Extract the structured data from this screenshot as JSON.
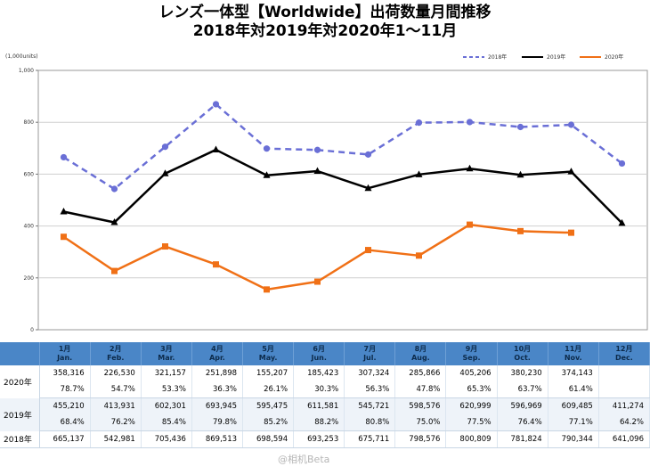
{
  "title_line1": "レンズ一体型【Worldwide】出荷数量月間推移",
  "title_line2": "2018年対2019年対2020年1～11月",
  "unit_label": "(1,000units)",
  "watermark": "@相机Beta",
  "chart_data": {
    "type": "line",
    "title": "レンズ一体型【Worldwide】出荷数量月間推移",
    "subtitle": "2018年対2019年対2020年1～11月",
    "ylabel": "(1,000units)",
    "xlabel": "",
    "ylim": [
      0,
      1000
    ],
    "yticks": [
      "0",
      "200",
      "400",
      "600",
      "800",
      "1,000"
    ],
    "grid": true,
    "legend_position": "top-right",
    "categories": [
      "1月",
      "2月",
      "3月",
      "4月",
      "5月",
      "6月",
      "7月",
      "8月",
      "9月",
      "10月",
      "11月",
      "12月"
    ],
    "series": [
      {
        "name": "2018年",
        "color": "#6a6fd6",
        "style": "dashed",
        "values": [
          665.137,
          542.981,
          705.436,
          869.513,
          698.594,
          693.253,
          675.711,
          798.576,
          800.809,
          781.824,
          790.344,
          641.096
        ]
      },
      {
        "name": "2019年",
        "color": "#000000",
        "style": "solid",
        "values": [
          455.21,
          413.931,
          602.301,
          693.945,
          595.475,
          611.581,
          545.721,
          598.576,
          620.999,
          596.969,
          609.485,
          411.274
        ]
      },
      {
        "name": "2020年",
        "color": "#f07016",
        "style": "solid",
        "values": [
          358.316,
          226.53,
          321.157,
          251.898,
          155.207,
          185.423,
          307.324,
          285.866,
          405.206,
          380.23,
          374.143,
          null
        ]
      }
    ]
  },
  "table": {
    "headers": [
      {
        "ja": "1月",
        "en": "Jan."
      },
      {
        "ja": "2月",
        "en": "Feb."
      },
      {
        "ja": "3月",
        "en": "Mar."
      },
      {
        "ja": "4月",
        "en": "Apr."
      },
      {
        "ja": "5月",
        "en": "May."
      },
      {
        "ja": "6月",
        "en": "Jun."
      },
      {
        "ja": "7月",
        "en": "Jul."
      },
      {
        "ja": "8月",
        "en": "Aug."
      },
      {
        "ja": "9月",
        "en": "Sep."
      },
      {
        "ja": "10月",
        "en": "Oct."
      },
      {
        "ja": "11月",
        "en": "Nov."
      },
      {
        "ja": "12月",
        "en": "Dec."
      }
    ],
    "rows": [
      {
        "year": "2020年",
        "values": [
          "358,316",
          "226,530",
          "321,157",
          "251,898",
          "155,207",
          "185,423",
          "307,324",
          "285,866",
          "405,206",
          "380,230",
          "374,143",
          ""
        ],
        "ratios": [
          "78.7%",
          "54.7%",
          "53.3%",
          "36.3%",
          "26.1%",
          "30.3%",
          "56.3%",
          "47.8%",
          "65.3%",
          "63.7%",
          "61.4%",
          ""
        ]
      },
      {
        "year": "2019年",
        "values": [
          "455,210",
          "413,931",
          "602,301",
          "693,945",
          "595,475",
          "611,581",
          "545,721",
          "598,576",
          "620,999",
          "596,969",
          "609,485",
          "411,274"
        ],
        "ratios": [
          "68.4%",
          "76.2%",
          "85.4%",
          "79.8%",
          "85.2%",
          "88.2%",
          "80.8%",
          "75.0%",
          "77.5%",
          "76.4%",
          "77.1%",
          "64.2%"
        ]
      },
      {
        "year": "2018年",
        "values": [
          "665,137",
          "542,981",
          "705,436",
          "869,513",
          "698,594",
          "693,253",
          "675,711",
          "798,576",
          "800,809",
          "781,824",
          "790,344",
          "641,096"
        ]
      }
    ]
  }
}
